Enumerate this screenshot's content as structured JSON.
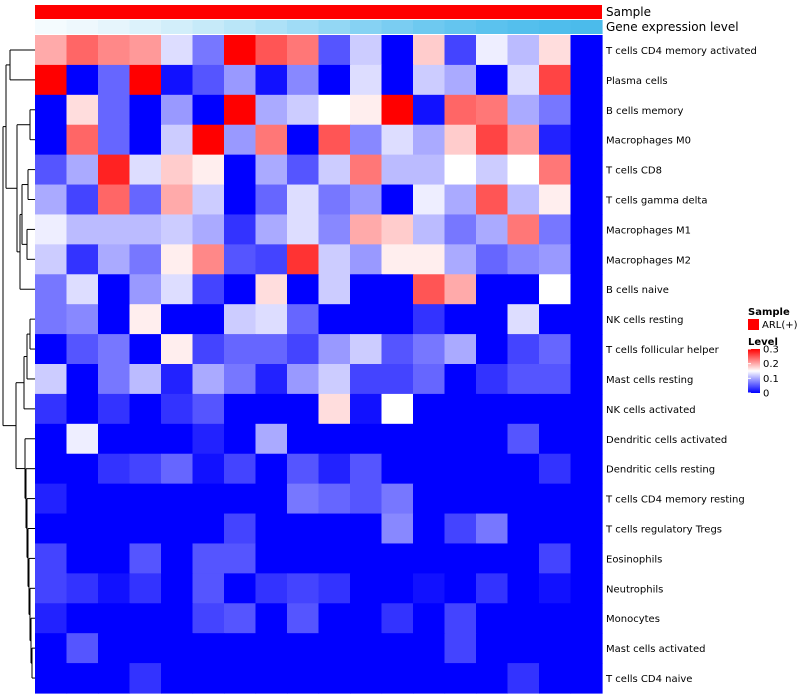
{
  "chart_data": {
    "type": "heatmap",
    "annotation_tracks": [
      {
        "name": "Sample",
        "label": "Sample"
      },
      {
        "name": "Gene expression level",
        "label": "Gene expression level"
      }
    ],
    "sample_track_color": "#ff0000",
    "expression_track_colors": [
      "#f4fbfe",
      "#eef8fd",
      "#e6f5fc",
      "#dcf2fb",
      "#d2eefa",
      "#c6eaf9",
      "#bae6f8",
      "#ade1f7",
      "#a0dcf6",
      "#93d7f4",
      "#86d2f3",
      "#7acdf2",
      "#6ec9f0",
      "#64c5ef",
      "#5bc2ee",
      "#54bfed",
      "#4fbdec",
      "#4bbbeb"
    ],
    "rows": [
      "T cells CD4 memory activated",
      "Plasma cells",
      "B cells memory",
      "Macrophages M0",
      "T cells CD8",
      "T cells gamma delta",
      "Macrophages M1",
      "Macrophages M2",
      "B cells naive",
      "NK cells resting",
      "T cells follicular helper",
      "Mast cells resting",
      "NK cells activated",
      "Dendritic cells activated",
      "Dendritic cells resting",
      "T cells CD4 memory resting",
      "T cells regulatory  Tregs",
      "Eosinophils",
      "Neutrophils",
      "Monocytes",
      "Mast cells activated",
      "T cells CD4 naive"
    ],
    "n_columns": 18,
    "values": [
      [
        0.2,
        0.24,
        0.22,
        0.21,
        0.13,
        0.07,
        0.3,
        0.25,
        0.23,
        0.05,
        0.12,
        0.0,
        0.18,
        0.04,
        0.14,
        0.11,
        0.17,
        null
      ],
      [
        0.3,
        0.0,
        0.06,
        0.3,
        0.01,
        0.05,
        0.09,
        0.01,
        0.08,
        0.0,
        0.13,
        0.0,
        0.12,
        0.1,
        0.0,
        0.13,
        0.26,
        null
      ],
      [
        0.0,
        0.17,
        0.06,
        0.0,
        0.09,
        0.0,
        0.3,
        0.1,
        0.12,
        0.15,
        0.16,
        0.3,
        0.01,
        0.24,
        0.23,
        0.1,
        0.07,
        null
      ],
      [
        0.0,
        0.24,
        0.06,
        0.0,
        0.12,
        0.3,
        0.09,
        0.23,
        0.0,
        0.25,
        0.08,
        0.13,
        0.1,
        0.18,
        0.26,
        0.21,
        0.02,
        null
      ],
      [
        0.05,
        0.1,
        0.28,
        0.13,
        0.18,
        0.16,
        0.0,
        0.1,
        0.05,
        0.12,
        0.23,
        0.11,
        0.11,
        0.15,
        0.12,
        0.15,
        0.23,
        null
      ],
      [
        0.1,
        0.04,
        0.24,
        0.06,
        0.2,
        0.12,
        0.0,
        0.06,
        0.13,
        0.07,
        0.09,
        0.0,
        0.14,
        0.1,
        0.25,
        0.11,
        0.16,
        null
      ],
      [
        0.14,
        0.11,
        0.11,
        0.11,
        0.12,
        0.1,
        0.03,
        0.1,
        0.13,
        0.08,
        0.2,
        0.18,
        0.11,
        0.07,
        0.1,
        0.23,
        0.07,
        null
      ],
      [
        0.12,
        0.03,
        0.1,
        0.07,
        0.16,
        0.22,
        0.05,
        0.04,
        0.27,
        0.12,
        0.09,
        0.16,
        0.16,
        0.1,
        0.06,
        0.08,
        0.09,
        null
      ],
      [
        0.07,
        0.13,
        0.0,
        0.09,
        0.13,
        0.04,
        0.0,
        0.17,
        0.0,
        0.12,
        0.0,
        0.0,
        0.25,
        0.2,
        0.0,
        0.0,
        0.15,
        null
      ],
      [
        0.07,
        0.08,
        0.0,
        0.16,
        0.0,
        0.0,
        0.12,
        0.13,
        0.06,
        0.0,
        0.0,
        0.0,
        0.03,
        0.0,
        0.0,
        0.13,
        0.0,
        null
      ],
      [
        0.0,
        0.05,
        0.07,
        0.0,
        0.16,
        0.04,
        0.06,
        0.06,
        0.04,
        0.09,
        0.12,
        0.05,
        0.07,
        0.1,
        0.0,
        0.04,
        0.06,
        null
      ],
      [
        0.12,
        0.0,
        0.07,
        0.11,
        0.02,
        0.1,
        0.07,
        0.02,
        0.09,
        0.12,
        0.04,
        0.04,
        0.06,
        0.0,
        0.03,
        0.05,
        0.05,
        null
      ],
      [
        0.03,
        0.0,
        0.03,
        0.0,
        0.03,
        0.05,
        0.0,
        0.0,
        0.0,
        0.17,
        0.01,
        0.15,
        0.0,
        0.0,
        0.0,
        0.0,
        0.0,
        null
      ],
      [
        0.0,
        0.14,
        0.0,
        0.0,
        0.0,
        0.02,
        0.0,
        0.1,
        0.0,
        0.0,
        0.0,
        0.0,
        0.0,
        0.0,
        0.0,
        0.05,
        0.0,
        null
      ],
      [
        0.0,
        0.0,
        0.03,
        0.04,
        0.06,
        0.01,
        0.04,
        0.0,
        0.05,
        0.02,
        0.05,
        0.0,
        0.0,
        0.0,
        0.0,
        0.0,
        0.03,
        null
      ],
      [
        0.02,
        0.0,
        0.0,
        0.0,
        0.0,
        0.0,
        0.0,
        0.0,
        0.07,
        0.06,
        0.05,
        0.07,
        0.0,
        0.0,
        0.0,
        0.0,
        0.0,
        null
      ],
      [
        0.0,
        0.0,
        0.0,
        0.0,
        0.0,
        0.0,
        0.04,
        0.0,
        0.0,
        0.0,
        0.0,
        0.08,
        0.0,
        0.04,
        0.07,
        0.0,
        0.0,
        null
      ],
      [
        0.04,
        0.0,
        0.0,
        0.05,
        0.0,
        0.05,
        0.05,
        0.0,
        0.0,
        0.0,
        0.0,
        0.0,
        0.0,
        0.0,
        0.0,
        0.0,
        0.04,
        null
      ],
      [
        0.04,
        0.03,
        0.01,
        0.03,
        0.0,
        0.05,
        0.0,
        0.03,
        0.04,
        0.03,
        0.0,
        0.0,
        0.01,
        0.0,
        0.03,
        0.0,
        0.01,
        null
      ],
      [
        0.02,
        0.0,
        0.0,
        0.0,
        0.0,
        0.04,
        0.05,
        0.0,
        0.05,
        0.0,
        0.0,
        0.03,
        0.0,
        0.04,
        0.0,
        0.0,
        0.0,
        null
      ],
      [
        0.0,
        0.05,
        0.0,
        0.0,
        0.0,
        0.0,
        0.0,
        0.0,
        0.0,
        0.0,
        0.0,
        0.0,
        0.0,
        0.04,
        0.0,
        0.0,
        0.0,
        null
      ],
      [
        0.0,
        0.0,
        0.0,
        0.03,
        0.0,
        0.0,
        0.0,
        0.0,
        0.0,
        0.0,
        0.0,
        0.0,
        0.0,
        0.0,
        0.0,
        0.03,
        0.0,
        null
      ]
    ],
    "color_scale": {
      "low": "#0000ff",
      "mid": "#ffffff",
      "high": "#ff0000",
      "min": 0,
      "mid_value": 0.15,
      "max": 0.3
    },
    "legend": {
      "sample_title": "Sample",
      "sample_entry": "ARL(+)",
      "level_title": "Level",
      "level_ticks": [
        "0.3",
        "0.2",
        "0.1",
        "0"
      ],
      "level_tick_values": [
        0.3,
        0.2,
        0.1,
        0
      ],
      "placement": "right"
    },
    "dendrogram": "row-clustering tree on left"
  }
}
